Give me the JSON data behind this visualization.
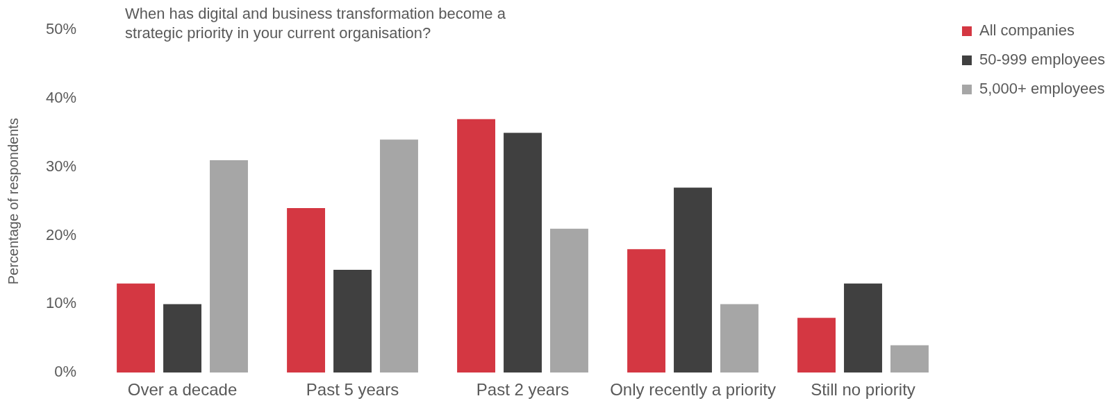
{
  "chart_data": {
    "type": "bar",
    "title": "When has digital and business transformation become a strategic priority in your current organisation?",
    "ylabel": "Percentage of respondents",
    "categories": [
      "Over a decade",
      "Past 5 years",
      "Past 2 years",
      "Only recently a priority",
      "Still no priority"
    ],
    "series": [
      {
        "name": "All companies",
        "color": "#d43742",
        "values": [
          13,
          24,
          37,
          18,
          8
        ]
      },
      {
        "name": "50-999 employees",
        "color": "#404040",
        "values": [
          10,
          15,
          35,
          27,
          13
        ]
      },
      {
        "name": "5,000+ employees",
        "color": "#a6a6a6",
        "values": [
          31,
          34,
          21,
          10,
          4
        ]
      }
    ],
    "ylim": [
      0,
      50
    ],
    "yticks": [
      {
        "value": 0,
        "label": "0%"
      },
      {
        "value": 10,
        "label": "10%"
      },
      {
        "value": 20,
        "label": "20%"
      },
      {
        "value": 30,
        "label": "30%"
      },
      {
        "value": 40,
        "label": "40%"
      },
      {
        "value": 50,
        "label": "50%"
      }
    ],
    "grid": false,
    "legend": "top right"
  }
}
